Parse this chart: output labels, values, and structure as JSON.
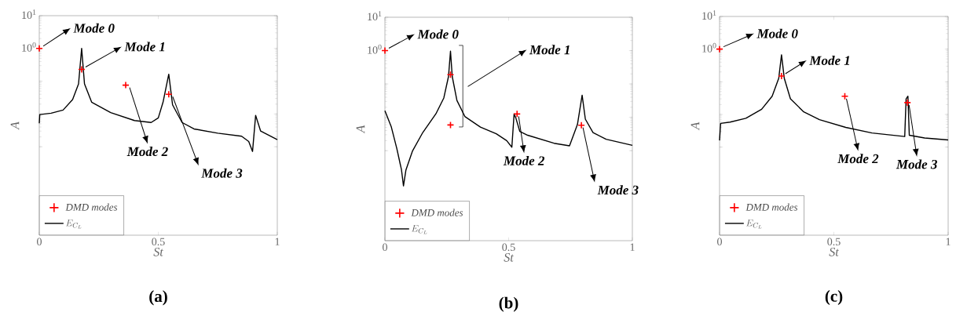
{
  "chart_data": [
    {
      "type": "line",
      "title": "(a)",
      "xlabel": "St",
      "ylabel": "A",
      "log": "y",
      "legend": "bottom left",
      "xlim": [
        0,
        1
      ],
      "xticks": [
        0,
        0.5,
        1
      ],
      "ylim": [
        2e-06,
        10
      ],
      "yticks": [
        {
          "value": 0.001,
          "label": null
        },
        {
          "value": 0.01,
          "label": null
        },
        {
          "value": 0.1,
          "label": null
        },
        {
          "value": 1,
          "label": "10$^{0}$"
        },
        {
          "value": 10,
          "label": "10$^{1}$"
        }
      ],
      "series": [
        {
          "name": "DMD modes",
          "type": "scatter",
          "color": "#ff0000",
          "x": [
            0,
            0.178,
            0.363,
            0.544
          ],
          "values": [
            1,
            0.23,
            0.076,
            0.04
          ]
        },
        {
          "name": "E_{C_L}",
          "line_style": "solid",
          "color": "#000000",
          "x": [
            0,
            0.002,
            0.05,
            0.1,
            0.14,
            0.165,
            0.178,
            0.19,
            0.22,
            0.3,
            0.4,
            0.47,
            0.5,
            0.52,
            0.544,
            0.56,
            0.6,
            0.65,
            0.75,
            0.85,
            0.88,
            0.896,
            0.909,
            0.93,
            1
          ],
          "values": [
            0.0052,
            0.0096,
            0.0106,
            0.0132,
            0.0275,
            0.083,
            1.0,
            0.083,
            0.023,
            0.011,
            0.0063,
            0.0055,
            0.0076,
            0.023,
            0.164,
            0.019,
            0.0055,
            0.0035,
            0.0026,
            0.0021,
            0.00145,
            0.00072,
            0.0091,
            0.003,
            0.00164
          ]
        }
      ],
      "annotations": [
        {
          "text": "Mode 0",
          "x": 0,
          "y": 1
        },
        {
          "text": "Mode 1",
          "x": 0.178,
          "y": 0.23
        },
        {
          "text": "Mode 2",
          "x": 0.363,
          "y": 0.076
        },
        {
          "text": "Mode 3",
          "x": 0.544,
          "y": 0.04
        }
      ]
    },
    {
      "type": "line",
      "title": "(b)",
      "xlabel": "St",
      "ylabel": "A",
      "log": "y",
      "legend": "bottom left",
      "xlim": [
        0,
        1
      ],
      "xticks": [
        0,
        0.5,
        1
      ],
      "ylim": [
        2e-06,
        10
      ],
      "yticks": [
        {
          "value": 0.001,
          "label": null
        },
        {
          "value": 0.01,
          "label": null
        },
        {
          "value": 0.1,
          "label": null
        },
        {
          "value": 1,
          "label": "10$^{0}$"
        },
        {
          "value": 10,
          "label": "10$^{1}$"
        }
      ],
      "series": [
        {
          "name": "DMD modes",
          "type": "scatter",
          "color": "#ff0000",
          "x": [
            0,
            0.265,
            0.265,
            0.534,
            0.794
          ],
          "values": [
            1,
            0.19,
            0.0059,
            0.0126,
            0.0058
          ]
        },
        {
          "name": "E_{C_L}",
          "line_style": "solid",
          "color": "#000000",
          "x": [
            0,
            0.026,
            0.048,
            0.067,
            0.075,
            0.085,
            0.111,
            0.153,
            0.206,
            0.238,
            0.257,
            0.265,
            0.272,
            0.291,
            0.323,
            0.386,
            0.45,
            0.492,
            0.513,
            0.522,
            0.529,
            0.545,
            0.577,
            0.683,
            0.746,
            0.778,
            0.797,
            0.81,
            0.841,
            0.894,
            1
          ],
          "values": [
            0.0158,
            0.0051,
            0.00116,
            0.000265,
            8.8e-05,
            0.000265,
            0.00096,
            0.0035,
            0.0127,
            0.038,
            0.168,
            0.96,
            0.168,
            0.032,
            0.0106,
            0.0051,
            0.0032,
            0.002,
            0.00127,
            0.0127,
            0.0096,
            0.0038,
            0.0029,
            0.00167,
            0.0014,
            0.0061,
            0.046,
            0.0088,
            0.0035,
            0.0022,
            0.00145
          ]
        }
      ],
      "annotations": [
        {
          "text": "Mode 0",
          "x": 0,
          "y": 1
        },
        "Mode 1",
        {
          "text": "Mode 2",
          "x": 0.534,
          "y": 0.0126
        },
        {
          "text": "Mode 3",
          "x": 0.794,
          "y": 0.0058
        }
      ]
    },
    {
      "type": "line",
      "title": "(c)",
      "xlabel": "St",
      "ylabel": "A",
      "log": "y",
      "legend": "bottom left",
      "xlim": [
        0,
        1
      ],
      "xticks": [
        0,
        0.5,
        1
      ],
      "ylim": [
        2e-06,
        10
      ],
      "yticks": [
        {
          "value": 0.001,
          "label": null
        },
        {
          "value": 0.01,
          "label": null
        },
        {
          "value": 0.1,
          "label": null
        },
        {
          "value": 1,
          "label": "10$^{0}$"
        },
        {
          "value": 10,
          "label": "10$^{1}$"
        }
      ],
      "series": [
        {
          "name": "DMD modes",
          "type": "scatter",
          "color": "#ff0000",
          "x": [
            0,
            0.271,
            0.548,
            0.822
          ],
          "values": [
            1,
            0.15,
            0.036,
            0.023
          ]
        },
        {
          "name": "E_{C_L}",
          "line_style": "solid",
          "color": "#000000",
          "x": [
            0,
            0.0046,
            0.046,
            0.115,
            0.184,
            0.23,
            0.259,
            0.271,
            0.283,
            0.31,
            0.368,
            0.437,
            0.552,
            0.667,
            0.81,
            0.816,
            0.824,
            0.83,
            0.897,
            1
          ],
          "values": [
            0.0016,
            0.0053,
            0.0058,
            0.0076,
            0.0144,
            0.036,
            0.129,
            0.67,
            0.129,
            0.03,
            0.012,
            0.0069,
            0.004,
            0.0027,
            0.0021,
            0.03,
            0.036,
            0.0023,
            0.0019,
            0.00166
          ]
        }
      ],
      "annotations": [
        {
          "text": "Mode 0",
          "x": 0,
          "y": 1
        },
        {
          "text": "Mode 1",
          "x": 0.271,
          "y": 0.15
        },
        {
          "text": "Mode 2",
          "x": 0.548,
          "y": 0.036
        },
        {
          "text": "Mode 3",
          "x": 0.822,
          "y": 0.023
        }
      ]
    }
  ]
}
